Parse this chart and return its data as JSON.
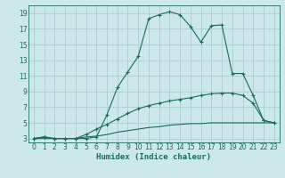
{
  "xlabel": "Humidex (Indice chaleur)",
  "bg_color": "#cce8ea",
  "grid_color": "#aacdd0",
  "line_color": "#1a6b5a",
  "xlim": [
    -0.5,
    23.5
  ],
  "ylim": [
    2.5,
    20.0
  ],
  "xticks": [
    0,
    1,
    2,
    3,
    4,
    5,
    6,
    7,
    8,
    9,
    10,
    11,
    12,
    13,
    14,
    15,
    16,
    17,
    18,
    19,
    20,
    21,
    22,
    23
  ],
  "yticks": [
    3,
    5,
    7,
    9,
    11,
    13,
    15,
    17,
    19
  ],
  "line1_x": [
    0,
    1,
    2,
    3,
    4,
    5,
    6,
    7,
    8,
    9,
    10,
    11,
    12,
    13,
    14,
    15,
    16,
    17,
    18,
    19,
    20,
    21,
    22,
    23
  ],
  "line1_y": [
    3.0,
    3.2,
    3.0,
    3.0,
    3.0,
    3.0,
    3.2,
    6.0,
    9.5,
    11.5,
    13.5,
    18.3,
    18.8,
    19.2,
    18.8,
    17.3,
    15.3,
    17.4,
    17.5,
    11.3,
    11.3,
    8.5,
    5.3,
    5.0
  ],
  "line2_x": [
    0,
    1,
    2,
    3,
    4,
    5,
    6,
    7,
    8,
    9,
    10,
    11,
    12,
    13,
    14,
    15,
    16,
    17,
    18,
    19,
    20,
    21,
    22,
    23
  ],
  "line2_y": [
    3.0,
    3.2,
    3.0,
    3.0,
    3.0,
    3.5,
    4.2,
    4.8,
    5.5,
    6.2,
    6.8,
    7.2,
    7.5,
    7.8,
    8.0,
    8.2,
    8.5,
    8.7,
    8.8,
    8.8,
    8.5,
    7.5,
    5.3,
    5.0
  ],
  "line3_x": [
    0,
    1,
    2,
    3,
    4,
    5,
    6,
    7,
    8,
    9,
    10,
    11,
    12,
    13,
    14,
    15,
    16,
    17,
    18,
    19,
    20,
    21,
    22,
    23
  ],
  "line3_y": [
    3.0,
    3.0,
    3.0,
    3.0,
    3.0,
    3.2,
    3.3,
    3.5,
    3.8,
    4.0,
    4.2,
    4.4,
    4.5,
    4.7,
    4.8,
    4.9,
    4.9,
    5.0,
    5.0,
    5.0,
    5.0,
    5.0,
    5.0,
    5.0
  ]
}
